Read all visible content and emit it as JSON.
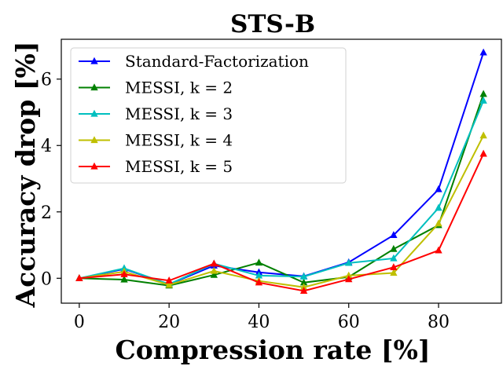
{
  "chart_data": {
    "type": "line",
    "title": "STS-B",
    "xlabel": "Compression rate [%]",
    "ylabel": "Accuracy drop [%]",
    "xlim": [
      -4,
      94
    ],
    "ylim": [
      -0.75,
      7.2
    ],
    "xticks": [
      0,
      20,
      40,
      60,
      80
    ],
    "yticks": [
      0,
      2,
      4,
      6
    ],
    "grid": false,
    "legend_position": "top-left",
    "x": [
      0,
      10,
      20,
      30,
      40,
      50,
      60,
      70,
      80,
      90
    ],
    "series": [
      {
        "name": "Standard-Factorization",
        "color": "#0000ff",
        "marker": "triangle-up",
        "values": [
          0.0,
          0.28,
          -0.18,
          0.38,
          0.18,
          0.06,
          0.48,
          1.3,
          2.68,
          6.8
        ]
      },
      {
        "name": "MESSI, k = 2",
        "color": "#008000",
        "marker": "triangle-up",
        "values": [
          0.0,
          -0.04,
          -0.22,
          0.1,
          0.47,
          -0.13,
          0.04,
          0.88,
          1.6,
          5.55
        ]
      },
      {
        "name": "MESSI, k = 3",
        "color": "#00bfbf",
        "marker": "triangle-up",
        "values": [
          0.0,
          0.3,
          -0.18,
          0.44,
          0.08,
          0.05,
          0.46,
          0.6,
          2.12,
          5.35
        ]
      },
      {
        "name": "MESSI, k = 4",
        "color": "#bfbf00",
        "marker": "triangle-up",
        "values": [
          0.0,
          0.2,
          -0.2,
          0.22,
          -0.08,
          -0.27,
          0.08,
          0.16,
          1.65,
          4.3
        ]
      },
      {
        "name": "MESSI, k = 5",
        "color": "#ff0000",
        "marker": "triangle-up",
        "values": [
          0.0,
          0.12,
          -0.07,
          0.44,
          -0.13,
          -0.38,
          -0.03,
          0.33,
          0.84,
          3.75
        ]
      }
    ]
  }
}
